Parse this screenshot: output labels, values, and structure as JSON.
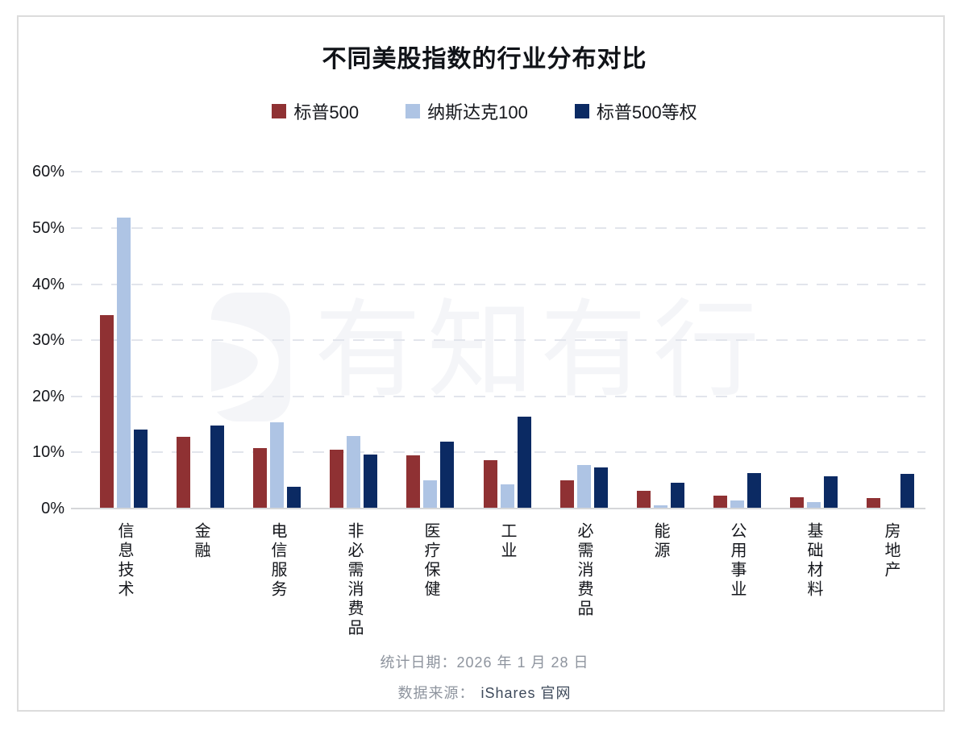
{
  "title": "不同美股指数的行业分布对比",
  "watermark": {
    "text": "有知有行"
  },
  "footer": {
    "date_line": "统计日期：2026 年 1 月 28 日",
    "source_label": "数据来源：",
    "source_value": "iShares 官网"
  },
  "chart_data": {
    "type": "bar",
    "title": "不同美股指数的行业分布对比",
    "categories": [
      "信息技术",
      "金融",
      "电信服务",
      "非必需消费品",
      "医疗保健",
      "工业",
      "必需消费品",
      "能源",
      "公用事业",
      "基础材料",
      "房地产"
    ],
    "series": [
      {
        "name": "标普500",
        "color": "#8f3133",
        "values": [
          34.3,
          12.7,
          10.6,
          10.4,
          9.4,
          8.5,
          4.9,
          3.0,
          2.2,
          1.9,
          1.7
        ]
      },
      {
        "name": "纳斯达克100",
        "color": "#aec4e4",
        "values": [
          51.7,
          0,
          15.3,
          12.8,
          4.9,
          4.1,
          7.6,
          0.5,
          1.3,
          1.0,
          0
        ]
      },
      {
        "name": "标普500等权",
        "color": "#0b2a63",
        "values": [
          14.0,
          14.7,
          3.7,
          9.5,
          11.8,
          16.2,
          7.2,
          4.5,
          6.2,
          5.6,
          6.1
        ]
      }
    ],
    "y_ticks": [
      "0%",
      "10%",
      "20%",
      "30%",
      "40%",
      "50%",
      "60%"
    ],
    "ylim": [
      0,
      60
    ],
    "xlabel": "",
    "ylabel": "",
    "grid": "horizontal-dashed",
    "legend_position": "top-center"
  }
}
